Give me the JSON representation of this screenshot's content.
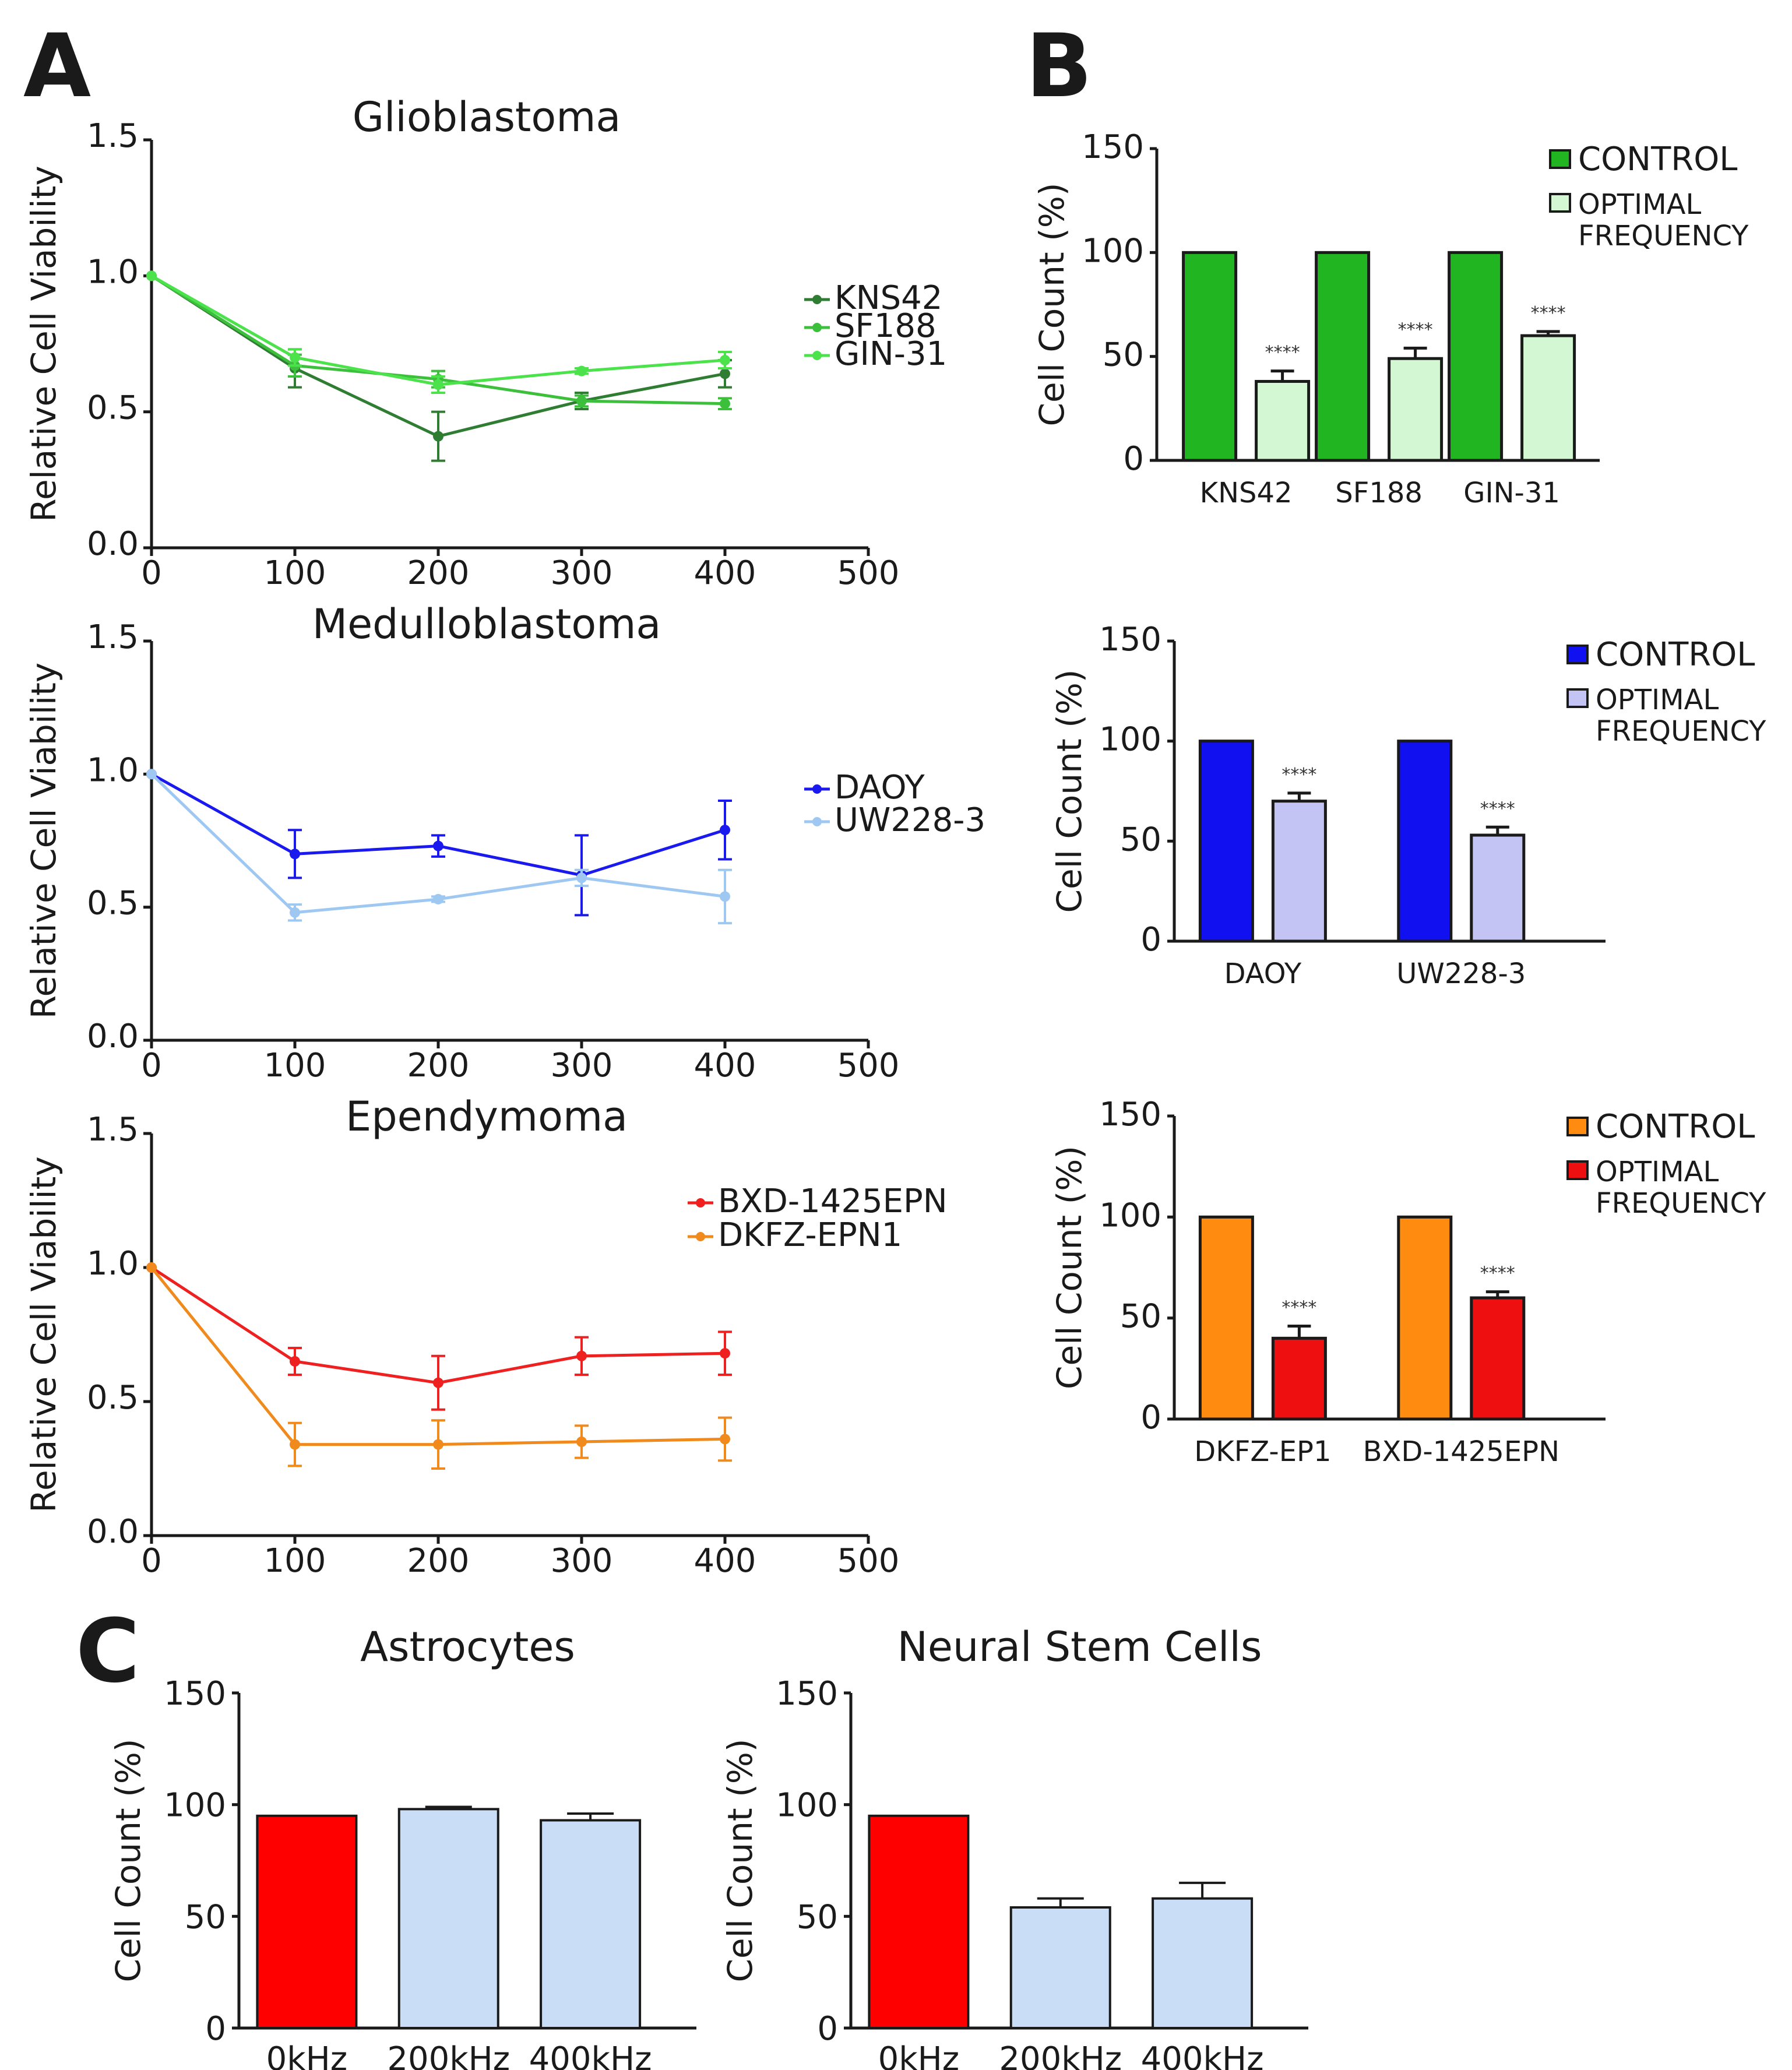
{
  "panels": {
    "a": "A",
    "b": "B",
    "c": "C"
  },
  "chart_data": [
    {
      "id": "glio",
      "type": "line",
      "title": "Glioblastoma",
      "xlabel": "",
      "ylabel": "Relative Cell Viability",
      "xlim": [
        0,
        500
      ],
      "ylim": [
        0,
        1.5
      ],
      "x_ticks": [
        "0",
        "100",
        "200",
        "300",
        "400",
        "500"
      ],
      "y_ticks": [
        "0.0",
        "0.5",
        "1.0",
        "1.5"
      ],
      "x": [
        0,
        100,
        200,
        300,
        400
      ],
      "series": [
        {
          "name": "KNS42",
          "color": "#2e7d32",
          "values": [
            1.0,
            0.66,
            0.41,
            0.54,
            0.64
          ],
          "errors": [
            0,
            0.07,
            0.09,
            0.03,
            0.05
          ]
        },
        {
          "name": "SF188",
          "color": "#3cc03c",
          "values": [
            1.0,
            0.67,
            0.62,
            0.54,
            0.53
          ],
          "errors": [
            0,
            0.04,
            0.03,
            0.02,
            0.02
          ]
        },
        {
          "name": "GIN-31",
          "color": "#4ce24c",
          "values": [
            1.0,
            0.7,
            0.6,
            0.65,
            0.69
          ],
          "errors": [
            0,
            0.03,
            0.03,
            0.01,
            0.03
          ]
        }
      ]
    },
    {
      "id": "medullo",
      "type": "line",
      "title": "Medulloblastoma",
      "xlabel": "",
      "ylabel": "Relative Cell Viability",
      "xlim": [
        0,
        500
      ],
      "ylim": [
        0,
        1.5
      ],
      "x_ticks": [
        "0",
        "100",
        "200",
        "300",
        "400",
        "500"
      ],
      "y_ticks": [
        "0.0",
        "0.5",
        "1.0",
        "1.5"
      ],
      "x": [
        0,
        100,
        200,
        300,
        400
      ],
      "series": [
        {
          "name": "DAOY",
          "color": "#1a1aee",
          "values": [
            1.0,
            0.7,
            0.73,
            0.62,
            0.79
          ],
          "errors": [
            0,
            0.09,
            0.04,
            0.15,
            0.11
          ]
        },
        {
          "name": "UW228-3",
          "color": "#9ec8f2",
          "values": [
            1.0,
            0.48,
            0.53,
            0.61,
            0.54
          ],
          "errors": [
            0,
            0.03,
            0.01,
            0.03,
            0.1
          ]
        }
      ]
    },
    {
      "id": "ependy",
      "type": "line",
      "title": "Ependymoma",
      "xlabel": "",
      "ylabel": "Relative Cell Viability",
      "xlim": [
        0,
        500
      ],
      "ylim": [
        0,
        1.5
      ],
      "x_ticks": [
        "0",
        "100",
        "200",
        "300",
        "400",
        "500"
      ],
      "y_ticks": [
        "0.0",
        "0.5",
        "1.0",
        "1.5"
      ],
      "x": [
        0,
        100,
        200,
        300,
        400
      ],
      "series": [
        {
          "name": "BXD-1425EPN",
          "color": "#ee2020",
          "values": [
            1.0,
            0.65,
            0.57,
            0.67,
            0.68
          ],
          "errors": [
            0,
            0.05,
            0.1,
            0.07,
            0.08
          ]
        },
        {
          "name": "DKFZ-EPN1",
          "color": "#f08a1c",
          "values": [
            1.0,
            0.34,
            0.34,
            0.35,
            0.36
          ],
          "errors": [
            0,
            0.08,
            0.09,
            0.06,
            0.08
          ]
        }
      ]
    },
    {
      "id": "b1",
      "type": "bar",
      "title": "",
      "xlabel": "",
      "ylabel": "Cell Count (%)",
      "ylim": [
        0,
        150
      ],
      "y_ticks": [
        "0",
        "50",
        "100",
        "150"
      ],
      "categories": [
        "KNS42",
        "SF188",
        "GIN-31"
      ],
      "significance": [
        "****",
        "****",
        "****"
      ],
      "series": [
        {
          "name": "CONTROL",
          "color": "#22b522",
          "values": [
            100,
            100,
            100
          ],
          "errors": [
            0,
            0,
            0
          ]
        },
        {
          "name": "OPTIMAL FREQUENCY",
          "color": "#d3f7d3",
          "values": [
            38,
            49,
            60
          ],
          "errors": [
            5,
            5,
            2
          ]
        }
      ]
    },
    {
      "id": "b2",
      "type": "bar",
      "title": "",
      "xlabel": "",
      "ylabel": "Cell Count (%)",
      "ylim": [
        0,
        150
      ],
      "y_ticks": [
        "0",
        "50",
        "100",
        "150"
      ],
      "categories": [
        "DAOY",
        "UW228-3"
      ],
      "significance": [
        "****",
        "****"
      ],
      "series": [
        {
          "name": "CONTROL",
          "color": "#1010f0",
          "values": [
            100,
            100
          ],
          "errors": [
            0,
            0
          ]
        },
        {
          "name": "OPTIMAL FREQUENCY",
          "color": "#c4c4f4",
          "values": [
            70,
            53
          ],
          "errors": [
            4,
            4
          ]
        }
      ]
    },
    {
      "id": "b3",
      "type": "bar",
      "title": "",
      "xlabel": "",
      "ylabel": "Cell Count (%)",
      "ylim": [
        0,
        150
      ],
      "y_ticks": [
        "0",
        "50",
        "100",
        "150"
      ],
      "categories": [
        "DKFZ-EP1",
        "BXD-1425EPN"
      ],
      "significance": [
        "****",
        "****"
      ],
      "series": [
        {
          "name": "CONTROL",
          "color": "#ff8c10",
          "values": [
            100,
            100
          ],
          "errors": [
            0,
            0
          ]
        },
        {
          "name": "OPTIMAL FREQUENCY",
          "color": "#ee1010",
          "values": [
            40,
            60
          ],
          "errors": [
            6,
            3
          ]
        }
      ]
    },
    {
      "id": "c1",
      "type": "bar",
      "title": "Astrocytes",
      "xlabel": "",
      "ylabel": "Cell Count (%)",
      "ylim": [
        0,
        150
      ],
      "y_ticks": [
        "0",
        "50",
        "100",
        "150"
      ],
      "categories": [
        "0kHz",
        "200kHz",
        "400kHz"
      ],
      "values": [
        95,
        98,
        93
      ],
      "errors": [
        0,
        1,
        3
      ],
      "colors": [
        "#ff0000",
        "#c9def6",
        "#c9def6"
      ]
    },
    {
      "id": "c2",
      "type": "bar",
      "title": "Neural Stem Cells",
      "xlabel": "",
      "ylabel": "Cell Count (%)",
      "ylim": [
        0,
        150
      ],
      "y_ticks": [
        "0",
        "50",
        "100",
        "150"
      ],
      "categories": [
        "0kHz",
        "200kHz",
        "400kHz"
      ],
      "values": [
        95,
        54,
        58
      ],
      "errors": [
        0,
        4,
        7
      ],
      "colors": [
        "#ff0000",
        "#c9def6",
        "#c9def6"
      ]
    }
  ]
}
